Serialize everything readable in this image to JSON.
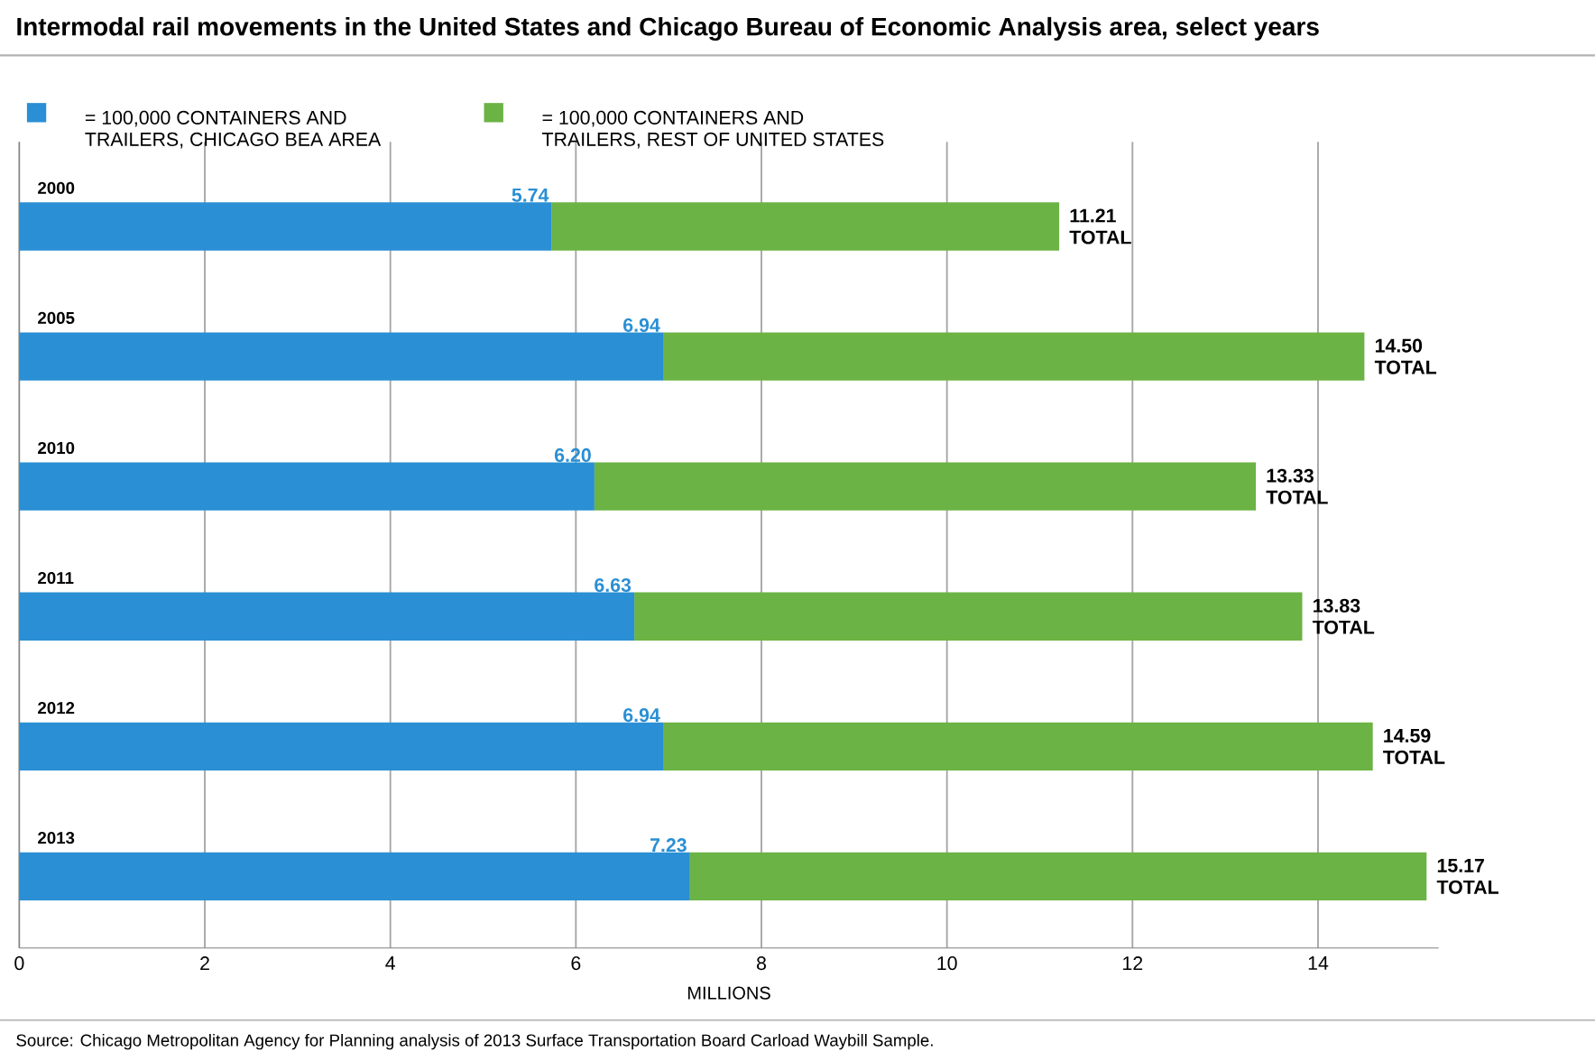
{
  "chart_data": {
    "type": "bar",
    "orientation": "horizontal",
    "stacked": true,
    "title": "Intermodal rail movements in the United States and Chicago Bureau of Economic Analysis area, select years",
    "xlabel": "MILLIONS",
    "categories": [
      "2000",
      "2005",
      "2010",
      "2011",
      "2012",
      "2013"
    ],
    "series": [
      {
        "name": "= 100,000 CONTAINERS AND TRAILERS, CHICAGO BEA AREA",
        "color": "#2a8fd4",
        "values": [
          5.74,
          6.94,
          6.2,
          6.63,
          6.94,
          7.23
        ],
        "value_labels": [
          "5.74",
          "6.94",
          "6.20",
          "6.63",
          "6.94",
          "7.23"
        ]
      },
      {
        "name": "= 100,000 CONTAINERS AND TRAILERS, REST OF UNITED STATES",
        "color": "#6bb344",
        "values": [
          5.47,
          7.56,
          7.13,
          7.2,
          7.65,
          7.94
        ]
      }
    ],
    "totals": [
      "11.21 TOTAL",
      "14.50 TOTAL",
      "13.33 TOTAL",
      "13.83 TOTAL",
      "14.59 TOTAL",
      "15.17 TOTAL"
    ],
    "xlim": [
      0,
      15.3
    ],
    "xticks": [
      0,
      2,
      4,
      6,
      8,
      10,
      12,
      14
    ],
    "grid": "x",
    "legend": "top left",
    "annotations": [
      "Source: Chicago Metropolitan Agency for Planning analysis of 2013 Surface Transportation Board Carload Waybill Sample."
    ]
  }
}
